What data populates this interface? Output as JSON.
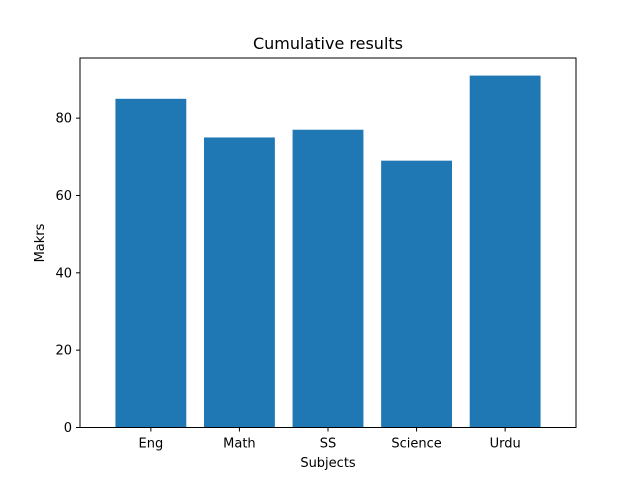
{
  "chart_data": {
    "type": "bar",
    "title": "Cumulative results",
    "xlabel": "Subjects",
    "ylabel": "Makrs",
    "categories": [
      "Eng",
      "Math",
      "SS",
      "Science",
      "Urdu"
    ],
    "values": [
      85,
      75,
      77,
      69,
      91
    ],
    "ylim": [
      0,
      95.55
    ],
    "yticks": [
      0,
      20,
      40,
      60,
      80
    ],
    "bar_color": "#1f77b4",
    "grid": false,
    "legend": false
  }
}
